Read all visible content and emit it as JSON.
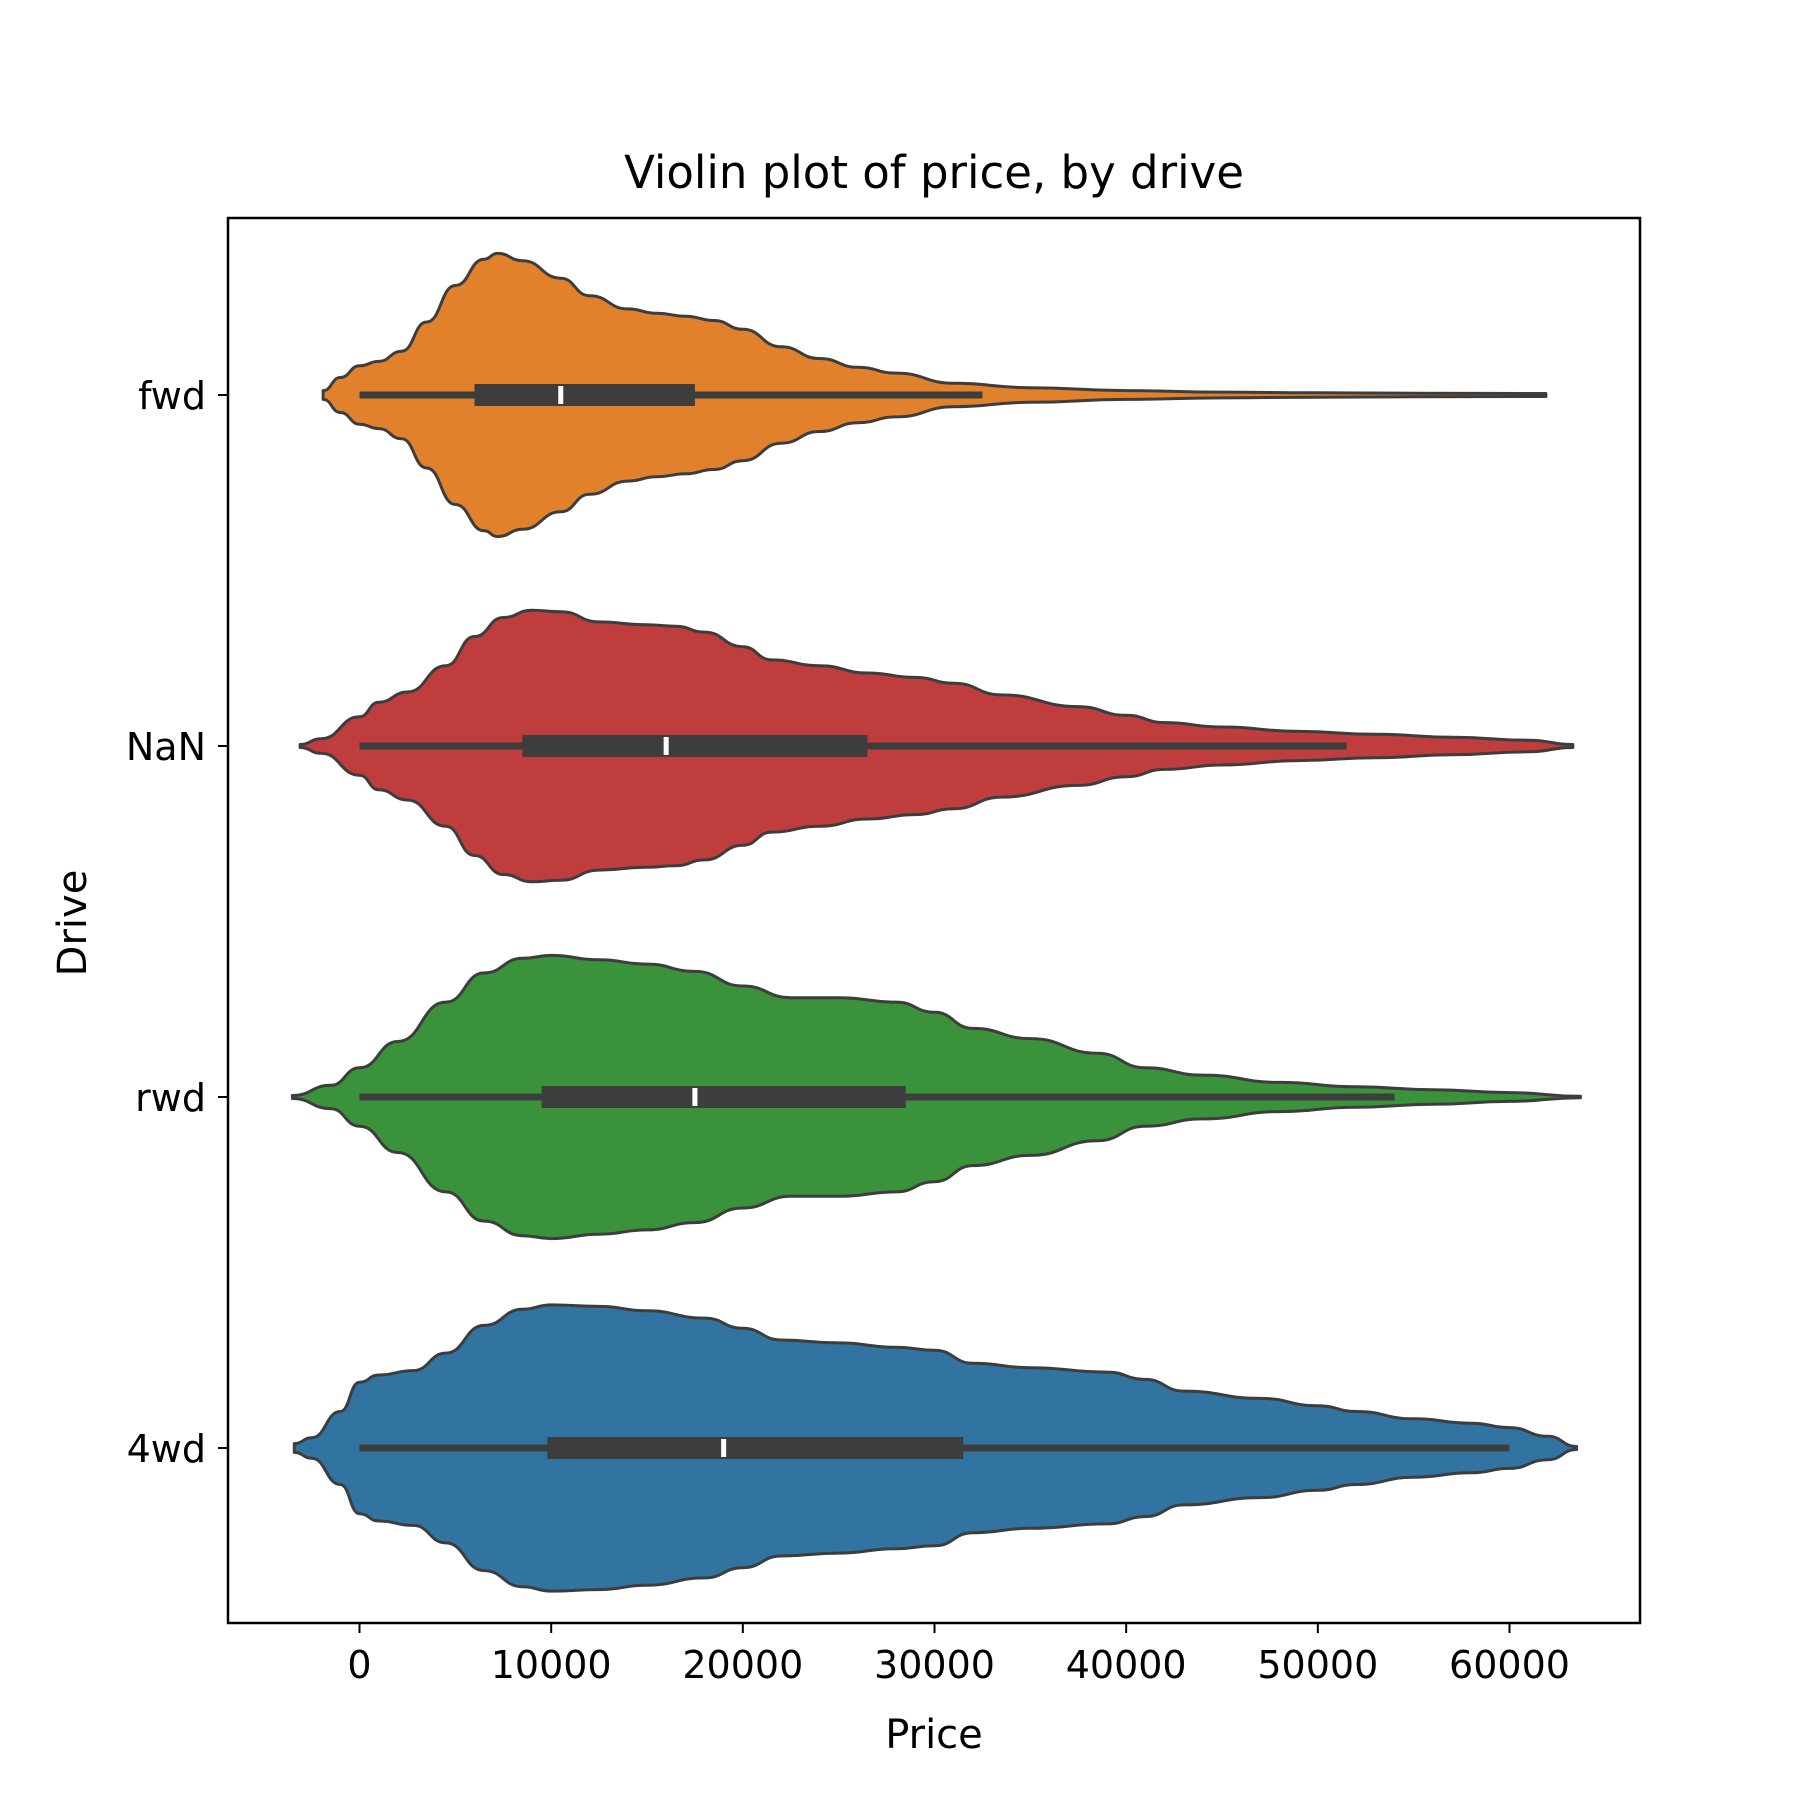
{
  "chart_data": {
    "type": "violin",
    "orientation": "horizontal",
    "title": "Violin plot of price, by drive",
    "xlabel": "Price",
    "ylabel": "Drive",
    "xlim": [
      -6900,
      67000
    ],
    "xticks": [
      0,
      10000,
      20000,
      30000,
      40000,
      50000,
      60000
    ],
    "grid": false,
    "legend": false,
    "colors": {
      "fwd": "#e1812c",
      "NaN": "#c03d3e",
      "rwd": "#3a923a",
      "4wd": "#3274a1",
      "outline": "#3d3d3d",
      "median": "#ffffff"
    },
    "categories": [
      "fwd",
      "NaN",
      "rwd",
      "4wd"
    ],
    "series": [
      {
        "name": "fwd",
        "box": {
          "whisker_low": 0,
          "q1": 6000,
          "median": 10500,
          "q3": 17500,
          "whisker_high": 32500
        },
        "extent": [
          -1900,
          61900
        ],
        "density": [
          [
            -1900,
            0.03
          ],
          [
            -1000,
            0.12
          ],
          [
            0,
            0.2
          ],
          [
            1000,
            0.23
          ],
          [
            2200,
            0.3
          ],
          [
            3500,
            0.5
          ],
          [
            5000,
            0.75
          ],
          [
            6500,
            0.93
          ],
          [
            7200,
            0.97
          ],
          [
            8500,
            0.92
          ],
          [
            10500,
            0.8
          ],
          [
            12000,
            0.68
          ],
          [
            14000,
            0.59
          ],
          [
            15500,
            0.56
          ],
          [
            17000,
            0.54
          ],
          [
            18500,
            0.51
          ],
          [
            20000,
            0.45
          ],
          [
            22000,
            0.33
          ],
          [
            24000,
            0.25
          ],
          [
            26000,
            0.19
          ],
          [
            28000,
            0.15
          ],
          [
            31000,
            0.08
          ],
          [
            35000,
            0.05
          ],
          [
            40000,
            0.03
          ],
          [
            45000,
            0.02
          ],
          [
            50000,
            0.015
          ],
          [
            55000,
            0.012
          ],
          [
            61900,
            0.01
          ]
        ]
      },
      {
        "name": "NaN",
        "box": {
          "whisker_low": 0,
          "q1": 8500,
          "median": 16000,
          "q3": 26500,
          "whisker_high": 51500
        },
        "extent": [
          -3100,
          63300
        ],
        "density": [
          [
            -3100,
            0.01
          ],
          [
            -2000,
            0.05
          ],
          [
            0,
            0.2
          ],
          [
            1000,
            0.3
          ],
          [
            2500,
            0.37
          ],
          [
            4500,
            0.55
          ],
          [
            6000,
            0.75
          ],
          [
            7500,
            0.88
          ],
          [
            9000,
            0.93
          ],
          [
            10500,
            0.92
          ],
          [
            12500,
            0.85
          ],
          [
            15000,
            0.83
          ],
          [
            16500,
            0.82
          ],
          [
            18000,
            0.78
          ],
          [
            20000,
            0.68
          ],
          [
            21500,
            0.59
          ],
          [
            24000,
            0.55
          ],
          [
            26500,
            0.5
          ],
          [
            29000,
            0.47
          ],
          [
            31000,
            0.43
          ],
          [
            33500,
            0.35
          ],
          [
            37500,
            0.27
          ],
          [
            40000,
            0.21
          ],
          [
            42000,
            0.16
          ],
          [
            45000,
            0.13
          ],
          [
            49000,
            0.1
          ],
          [
            53000,
            0.08
          ],
          [
            57000,
            0.06
          ],
          [
            61000,
            0.04
          ],
          [
            63300,
            0.01
          ]
        ]
      },
      {
        "name": "rwd",
        "box": {
          "whisker_low": 0,
          "q1": 9500,
          "median": 17500,
          "q3": 28500,
          "whisker_high": 54000
        },
        "extent": [
          -3500,
          63700
        ],
        "density": [
          [
            -3500,
            0.01
          ],
          [
            -1500,
            0.08
          ],
          [
            0,
            0.2
          ],
          [
            2000,
            0.38
          ],
          [
            4500,
            0.65
          ],
          [
            6500,
            0.85
          ],
          [
            8500,
            0.95
          ],
          [
            10000,
            0.97
          ],
          [
            12500,
            0.94
          ],
          [
            15000,
            0.91
          ],
          [
            17500,
            0.86
          ],
          [
            20000,
            0.76
          ],
          [
            22500,
            0.68
          ],
          [
            25000,
            0.68
          ],
          [
            28000,
            0.65
          ],
          [
            30000,
            0.58
          ],
          [
            32000,
            0.47
          ],
          [
            35000,
            0.4
          ],
          [
            38500,
            0.3
          ],
          [
            41000,
            0.2
          ],
          [
            44000,
            0.15
          ],
          [
            48000,
            0.1
          ],
          [
            52000,
            0.07
          ],
          [
            56000,
            0.05
          ],
          [
            60000,
            0.03
          ],
          [
            63700,
            0.005
          ]
        ]
      },
      {
        "name": "4wd",
        "box": {
          "whisker_low": 0,
          "q1": 9800,
          "median": 19000,
          "q3": 31500,
          "whisker_high": 60000
        },
        "extent": [
          -3400,
          63500
        ],
        "density": [
          [
            -3400,
            0.03
          ],
          [
            -2500,
            0.07
          ],
          [
            -1000,
            0.25
          ],
          [
            0,
            0.45
          ],
          [
            1000,
            0.5
          ],
          [
            2800,
            0.53
          ],
          [
            4500,
            0.65
          ],
          [
            6500,
            0.84
          ],
          [
            8500,
            0.95
          ],
          [
            10000,
            0.98
          ],
          [
            12500,
            0.97
          ],
          [
            15000,
            0.94
          ],
          [
            18000,
            0.89
          ],
          [
            20000,
            0.82
          ],
          [
            22000,
            0.74
          ],
          [
            25000,
            0.72
          ],
          [
            28000,
            0.69
          ],
          [
            30000,
            0.67
          ],
          [
            32000,
            0.58
          ],
          [
            35000,
            0.55
          ],
          [
            39000,
            0.52
          ],
          [
            41000,
            0.47
          ],
          [
            43000,
            0.39
          ],
          [
            47000,
            0.34
          ],
          [
            50000,
            0.29
          ],
          [
            52000,
            0.25
          ],
          [
            55000,
            0.2
          ],
          [
            58000,
            0.17
          ],
          [
            60000,
            0.14
          ],
          [
            62000,
            0.08
          ],
          [
            63500,
            0.01
          ]
        ]
      }
    ]
  }
}
